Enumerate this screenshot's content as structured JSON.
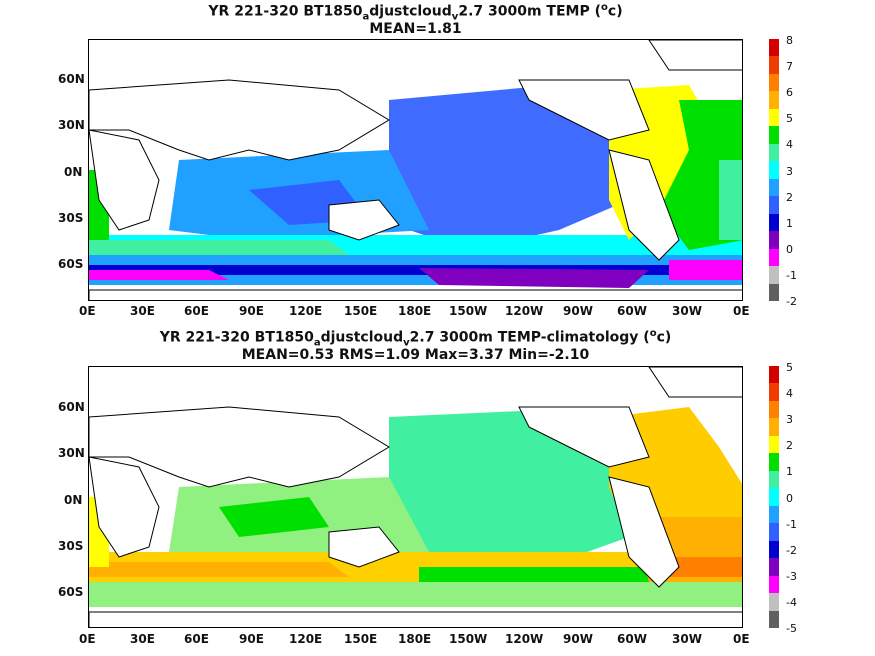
{
  "panels": [
    {
      "title_parts": [
        "YR 221-320 BT1850",
        "a",
        "djustcloud",
        "v",
        "2.7 3000m TEMP (",
        "o",
        "c)"
      ],
      "subtitle": "MEAN=1.81",
      "xticks": [
        "0E",
        "30E",
        "60E",
        "90E",
        "120E",
        "150E",
        "180E",
        "150W",
        "120W",
        "90W",
        "60W",
        "30W",
        "0E"
      ],
      "yticks": [
        "60N",
        "30N",
        "0N",
        "30S",
        "60S"
      ],
      "colorbar_labels": [
        "8",
        "7",
        "6",
        "5",
        "4",
        "3",
        "2",
        "1",
        "0",
        "-1",
        "-2"
      ],
      "colorbar_colors": [
        "#d40000",
        "#f03c00",
        "#ff7f00",
        "#ffb000",
        "#ffff00",
        "#00e000",
        "#40f0a0",
        "#00ffff",
        "#20a0ff",
        "#3060ff",
        "#0000d0",
        "#8000c0",
        "#ff00ff",
        "#c0c0c0",
        "#606060"
      ]
    },
    {
      "title_parts": [
        "YR 221-320 BT1850",
        "a",
        "djustcloud",
        "v",
        "2.7 3000m TEMP-climatology (",
        "o",
        "c)"
      ],
      "subtitle": "MEAN=0.53   RMS=1.09   Max=3.37   Min=-2.10",
      "xticks": [
        "0E",
        "30E",
        "60E",
        "90E",
        "120E",
        "150E",
        "180E",
        "150W",
        "120W",
        "90W",
        "60W",
        "30W",
        "0E"
      ],
      "yticks": [
        "60N",
        "30N",
        "0N",
        "30S",
        "60S"
      ],
      "colorbar_labels": [
        "5",
        "4",
        "3",
        "2",
        "1",
        "0",
        "-1",
        "-2",
        "-3",
        "-4",
        "-5"
      ],
      "colorbar_colors": [
        "#d40000",
        "#f03c00",
        "#ff7f00",
        "#ffb000",
        "#ffff00",
        "#00e000",
        "#40f0a0",
        "#00ffff",
        "#20a0ff",
        "#3060ff",
        "#0000d0",
        "#8000c0",
        "#ff00ff",
        "#c0c0c0",
        "#606060"
      ]
    }
  ],
  "map_field_colors": {
    "panel1": {
      "pacific": "#3f6bff",
      "indian": "#20a0ff",
      "southern": "#00ffff",
      "atlantic": "#00e000",
      "atlantic_north": "#ffff00",
      "antarctic": "#ff00ff",
      "deep_south": "#8000c0"
    },
    "panel2": {
      "pacific": "#40f0a0",
      "indian": "#90f080",
      "southern": "#ffd000",
      "atlantic": "#ffb000",
      "atlantic_north": "#ffcc00",
      "antarctic": "#90f080",
      "band": "#ff7f00"
    }
  }
}
